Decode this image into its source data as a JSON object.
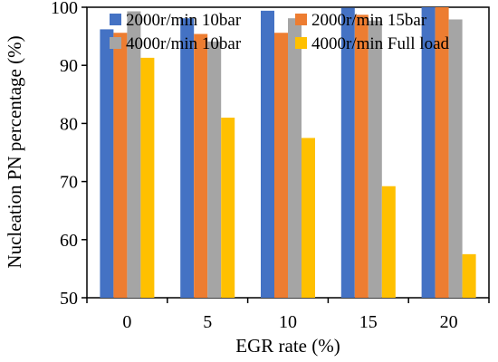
{
  "chart_data": {
    "type": "bar",
    "title": "",
    "xlabel": "EGR rate (%)",
    "ylabel": "Nucleation PN percentage (%)",
    "ylim": [
      50,
      100
    ],
    "yticks": [
      50,
      60,
      70,
      80,
      90,
      100
    ],
    "categories": [
      "0",
      "5",
      "10",
      "15",
      "20"
    ],
    "grid": false,
    "legend_position": "top",
    "series": [
      {
        "name": "2000r/min 10bar",
        "color": "#4472C4",
        "values": [
          96.2,
          98.1,
          99.4,
          99.9,
          100
        ]
      },
      {
        "name": "2000r/min 15bar",
        "color": "#ED7D31",
        "values": [
          95.6,
          95.4,
          95.6,
          98.7,
          100
        ]
      },
      {
        "name": "4000r/min 10bar",
        "color": "#A5A5A5",
        "values": [
          99.3,
          94.1,
          98.1,
          97.7,
          97.9
        ]
      },
      {
        "name": "4000r/min Full load",
        "color": "#FFC000",
        "values": [
          91.3,
          81.0,
          77.5,
          69.2,
          57.5
        ]
      }
    ]
  }
}
